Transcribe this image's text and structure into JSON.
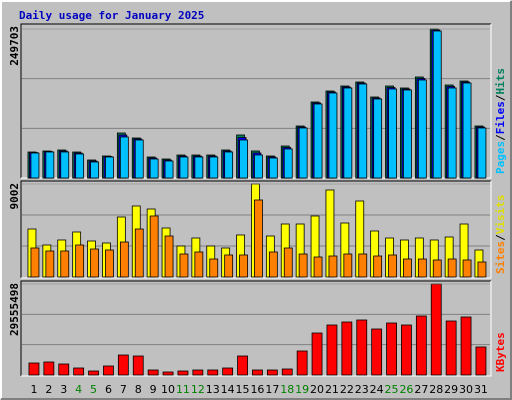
{
  "chart_data": [
    {
      "type": "bar",
      "title": "Daily usage for January 2025",
      "series": [
        {
          "name": "Hits",
          "color": "#00805c",
          "values": [
            43576,
            45252,
            46928,
            43576,
            30168,
            36872,
            75420,
            67040,
            35196,
            31844,
            38548,
            38548,
            38548,
            46928,
            72068,
            45252,
            36872,
            53632,
            87152,
            127376,
            145812,
            154192,
            160896,
            135756,
            154192,
            150840,
            169276,
            249703,
            155868,
            162572,
            87152
          ]
        },
        {
          "name": "Files",
          "color": "#0000ff",
          "values": [
            42700,
            44400,
            45200,
            41900,
            28500,
            36000,
            72000,
            65400,
            33500,
            30100,
            36800,
            36800,
            36800,
            45200,
            67800,
            41900,
            35200,
            51100,
            85400,
            125700,
            144100,
            152500,
            159200,
            134000,
            151600,
            149100,
            166700,
            248000,
            153300,
            160800,
            85400
          ]
        },
        {
          "name": "Pages",
          "color": "#00c0ff",
          "values": [
            41900,
            43576,
            43576,
            40224,
            26816,
            35196,
            68716,
            63688,
            31844,
            28492,
            35196,
            35196,
            35196,
            43576,
            63688,
            38548,
            33520,
            48604,
            83800,
            124024,
            142460,
            150840,
            157544,
            132404,
            149164,
            147488,
            164248,
            246372,
            150840,
            159220,
            83800
          ]
        }
      ],
      "ylim": [
        0,
        249703
      ],
      "yticks": [
        249703
      ]
    },
    {
      "type": "bar",
      "series": [
        {
          "name": "Visits",
          "color": "#ffff00",
          "values": [
            4646,
            3098,
            3582,
            4356,
            3485,
            3291,
            5808,
            6873,
            6582,
            4743,
            3001,
            3775,
            3001,
            2807,
            4066,
            9002,
            3969,
            5130,
            5130,
            5905,
            8422,
            5227,
            7357,
            4453,
            3775,
            3582,
            3775,
            3582,
            3872,
            5130,
            2614
          ]
        },
        {
          "name": "Sites",
          "color": "#ff8000",
          "values": [
            2807,
            2517,
            2517,
            3098,
            2710,
            2614,
            3388,
            4646,
            5905,
            3969,
            2226,
            2420,
            1742,
            2130,
            2130,
            7454,
            2420,
            2807,
            2226,
            1936,
            2033,
            2226,
            2226,
            2033,
            2130,
            1742,
            1742,
            1646,
            1742,
            1646,
            1452
          ]
        }
      ],
      "ylim": [
        0,
        9002
      ],
      "yticks": [
        9002
      ]
    },
    {
      "type": "bar",
      "categories": [
        "1",
        "2",
        "3",
        "4",
        "5",
        "6",
        "7",
        "8",
        "9",
        "10",
        "11",
        "12",
        "13",
        "14",
        "15",
        "16",
        "17",
        "18",
        "19",
        "20",
        "21",
        "22",
        "23",
        "24",
        "25",
        "26",
        "27",
        "28",
        "29",
        "30",
        "31"
      ],
      "series": [
        {
          "name": "KBytes",
          "color": "#ff0000",
          "values": [
            3897432,
            4222218,
            3572646,
            2273502,
            1299144,
            2923074,
            6495720,
            6170934,
            1623930,
            974358,
            1299144,
            1623930,
            1623930,
            2273502,
            6170934,
            1623930,
            1623930,
            1948716,
            7794864,
            13641012,
            16239300,
            17213658,
            17863230,
            14940156,
            16888872,
            16239300,
            19162374,
            29555498,
            17538444,
            18837588,
            9094008
          ]
        }
      ],
      "ylim": [
        0,
        29555498
      ],
      "yticks": [
        29555498
      ]
    }
  ]
}
